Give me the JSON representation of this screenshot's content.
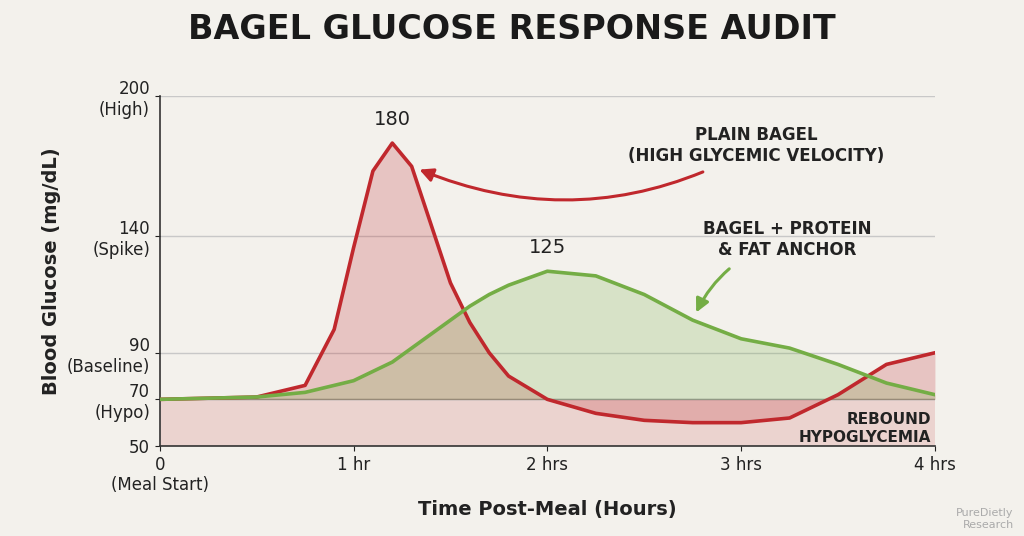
{
  "chart_data": {
    "type": "line",
    "title": "BAGEL GLUCOSE RESPONSE AUDIT",
    "x_label": "Time Post-Meal (Hours)",
    "y_label": "Blood Glucose (mg/dL)",
    "x": [
      0,
      0.5,
      0.75,
      0.9,
      1.0,
      1.1,
      1.2,
      1.3,
      1.4,
      1.5,
      1.6,
      1.7,
      1.8,
      2.0,
      2.25,
      2.5,
      2.75,
      3.0,
      3.25,
      3.5,
      3.75,
      4.0
    ],
    "xlim": [
      0,
      4
    ],
    "xticks": [
      {
        "value": 0,
        "label": "0\n(Meal Start)"
      },
      {
        "value": 1,
        "label": "1 hr"
      },
      {
        "value": 2,
        "label": "2 hrs"
      },
      {
        "value": 3,
        "label": "3 hrs"
      },
      {
        "value": 4,
        "label": "4 hrs"
      }
    ],
    "ylim": [
      50,
      200
    ],
    "yticks": [
      50,
      {
        "value": 70,
        "label": "70\n(Hypo)"
      },
      {
        "value": 90,
        "label": "90\n(Baseline)"
      },
      {
        "value": 140,
        "label": "140\n(Spike)"
      },
      {
        "value": 200,
        "label": "200\n(High)"
      }
    ],
    "grid": true,
    "series": [
      {
        "name": "PLAIN BAGEL\n(HIGH GLYCEMIC VELOCITY)",
        "color": "#c0282d",
        "peak_label": "180",
        "values": [
          70,
          71,
          76,
          100,
          135,
          168,
          180,
          170,
          145,
          120,
          103,
          90,
          80,
          70,
          64,
          61,
          60,
          60,
          62,
          72,
          85,
          90
        ]
      },
      {
        "name": "BAGEL + PROTEIN\n& FAT ANCHOR",
        "color": "#74ad45",
        "peak_label": "125",
        "values": [
          70,
          71,
          73,
          76,
          78,
          82,
          86,
          92,
          98,
          104,
          110,
          115,
          119,
          125,
          123,
          115,
          104,
          96,
          92,
          85,
          77,
          72
        ]
      }
    ],
    "annotations": [
      "REBOUND\nHYPOGLYCEMIA"
    ],
    "source": "PureDietly\nResearch"
  }
}
